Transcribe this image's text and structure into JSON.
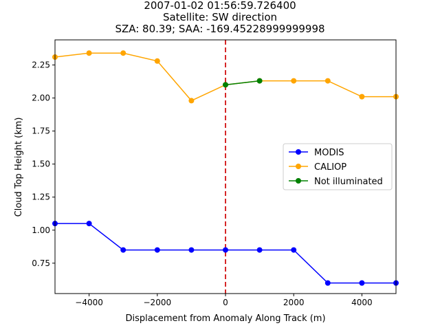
{
  "chart_data": {
    "type": "line",
    "title_lines": [
      "2007-01-02 01:56:59.726400",
      "Satellite: SW direction",
      "SZA: 80.39; SAA: -169.45228999999998"
    ],
    "xlabel": "Displacement from Anomaly Along Track (m)",
    "ylabel": "Cloud Top Height (km)",
    "xlim": [
      -5000,
      5000
    ],
    "ylim": [
      0.52,
      2.44
    ],
    "xticks": [
      -4000,
      -2000,
      0,
      2000,
      4000
    ],
    "xtick_labels": [
      "−4000",
      "−2000",
      "0",
      "2000",
      "4000"
    ],
    "yticks": [
      0.75,
      1.0,
      1.25,
      1.5,
      1.75,
      2.0,
      2.25
    ],
    "ytick_labels": [
      "0.75",
      "1.00",
      "1.25",
      "1.50",
      "1.75",
      "2.00",
      "2.25"
    ],
    "grid": false,
    "legend_position": "center-right",
    "vline": {
      "x": 0,
      "color": "#d62728",
      "style": "dashed"
    },
    "series": [
      {
        "name": "MODIS",
        "color": "#0000ff",
        "x": [
          -5000,
          -4000,
          -3000,
          -2000,
          -1000,
          0,
          1000,
          2000,
          3000,
          4000,
          5000
        ],
        "y": [
          1.05,
          1.05,
          0.85,
          0.85,
          0.85,
          0.85,
          0.85,
          0.85,
          0.6,
          0.6,
          0.6
        ]
      },
      {
        "name": "CALIOP",
        "color": "#ffa500",
        "x": [
          -5000,
          -4000,
          -3000,
          -2000,
          -1000,
          0,
          1000,
          2000,
          3000,
          4000,
          5000
        ],
        "y": [
          2.31,
          2.34,
          2.34,
          2.28,
          1.98,
          2.1,
          2.13,
          2.13,
          2.13,
          2.01,
          2.01
        ]
      },
      {
        "name": "Not illuminated",
        "color": "#008000",
        "x": [
          0,
          1000
        ],
        "y": [
          2.1,
          2.13
        ]
      }
    ]
  }
}
